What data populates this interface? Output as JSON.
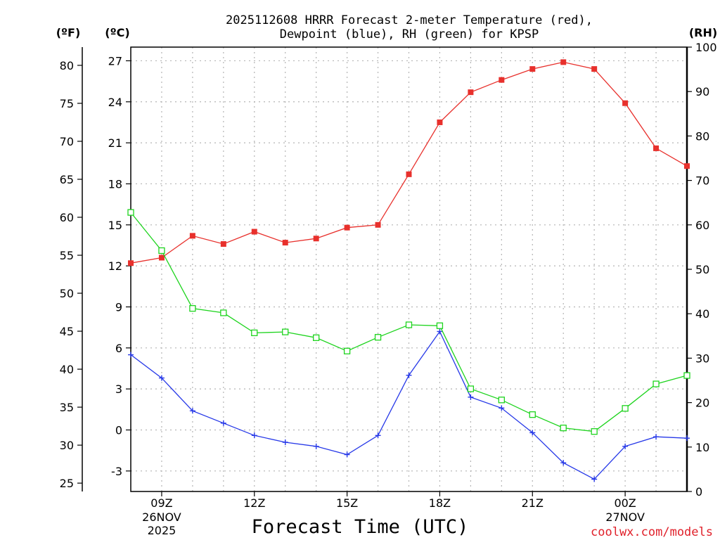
{
  "chart_data": {
    "type": "line",
    "title_line1": "2025112608 HRRR Forecast 2-meter Temperature (red),",
    "title_line2": "Dewpoint (blue), RH (green) for KPSP",
    "xlabel": "Forecast Time (UTC)",
    "credit": "coolwx.com/models",
    "unit_f": "(ºF)",
    "unit_c": "(ºC)",
    "unit_rh": "(RH)",
    "x_hours": [
      8,
      9,
      10,
      11,
      12,
      13,
      14,
      15,
      16,
      17,
      18,
      19,
      20,
      21,
      22,
      23,
      24,
      25,
      26
    ],
    "x_range": [
      8,
      26
    ],
    "x_ticks": [
      {
        "hour": 9,
        "label": "09Z",
        "sub1": "26NOV",
        "sub2": "2025"
      },
      {
        "hour": 12,
        "label": "12Z",
        "sub1": "",
        "sub2": ""
      },
      {
        "hour": 15,
        "label": "15Z",
        "sub1": "",
        "sub2": ""
      },
      {
        "hour": 18,
        "label": "18Z",
        "sub1": "",
        "sub2": ""
      },
      {
        "hour": 21,
        "label": "21Z",
        "sub1": "",
        "sub2": ""
      },
      {
        "hour": 24,
        "label": "00Z",
        "sub1": "27NOV",
        "sub2": ""
      }
    ],
    "celsius_range": [
      -4.5,
      28
    ],
    "celsius_ticks": [
      "-3",
      "0",
      "3",
      "6",
      "9",
      "12",
      "15",
      "18",
      "21",
      "24",
      "27"
    ],
    "fahrenheit_ticks": [
      "25",
      "30",
      "35",
      "40",
      "45",
      "50",
      "55",
      "60",
      "65",
      "70",
      "75",
      "80"
    ],
    "rh_range": [
      0,
      100
    ],
    "rh_ticks": [
      "0",
      "10",
      "20",
      "30",
      "40",
      "50",
      "60",
      "70",
      "80",
      "90",
      "100"
    ],
    "series": [
      {
        "name": "Temperature",
        "unit": "C",
        "color": "#e8302c",
        "marker": "filled-square",
        "values": [
          12.2,
          12.6,
          14.2,
          13.6,
          14.5,
          13.7,
          14.0,
          14.8,
          15.0,
          18.7,
          22.5,
          24.7,
          25.6,
          26.4,
          26.9,
          26.4,
          23.9,
          20.6,
          19.3
        ]
      },
      {
        "name": "Dewpoint",
        "unit": "C",
        "color": "#2638e8",
        "marker": "plus",
        "values": [
          5.5,
          3.8,
          1.4,
          0.5,
          -0.4,
          -0.9,
          -1.2,
          -1.8,
          -0.4,
          4.0,
          7.2,
          2.4,
          1.6,
          -0.2,
          -2.4,
          -3.6,
          -1.2,
          -0.5,
          -0.6
        ]
      },
      {
        "name": "RH",
        "unit": "%",
        "color": "#1ed41e",
        "marker": "open-square",
        "values": [
          62.8,
          54.2,
          41.2,
          40.2,
          35.7,
          35.9,
          34.6,
          31.6,
          34.7,
          37.5,
          37.3,
          23.1,
          20.6,
          17.3,
          14.3,
          13.5,
          18.7,
          24.2,
          26.1
        ]
      }
    ]
  }
}
